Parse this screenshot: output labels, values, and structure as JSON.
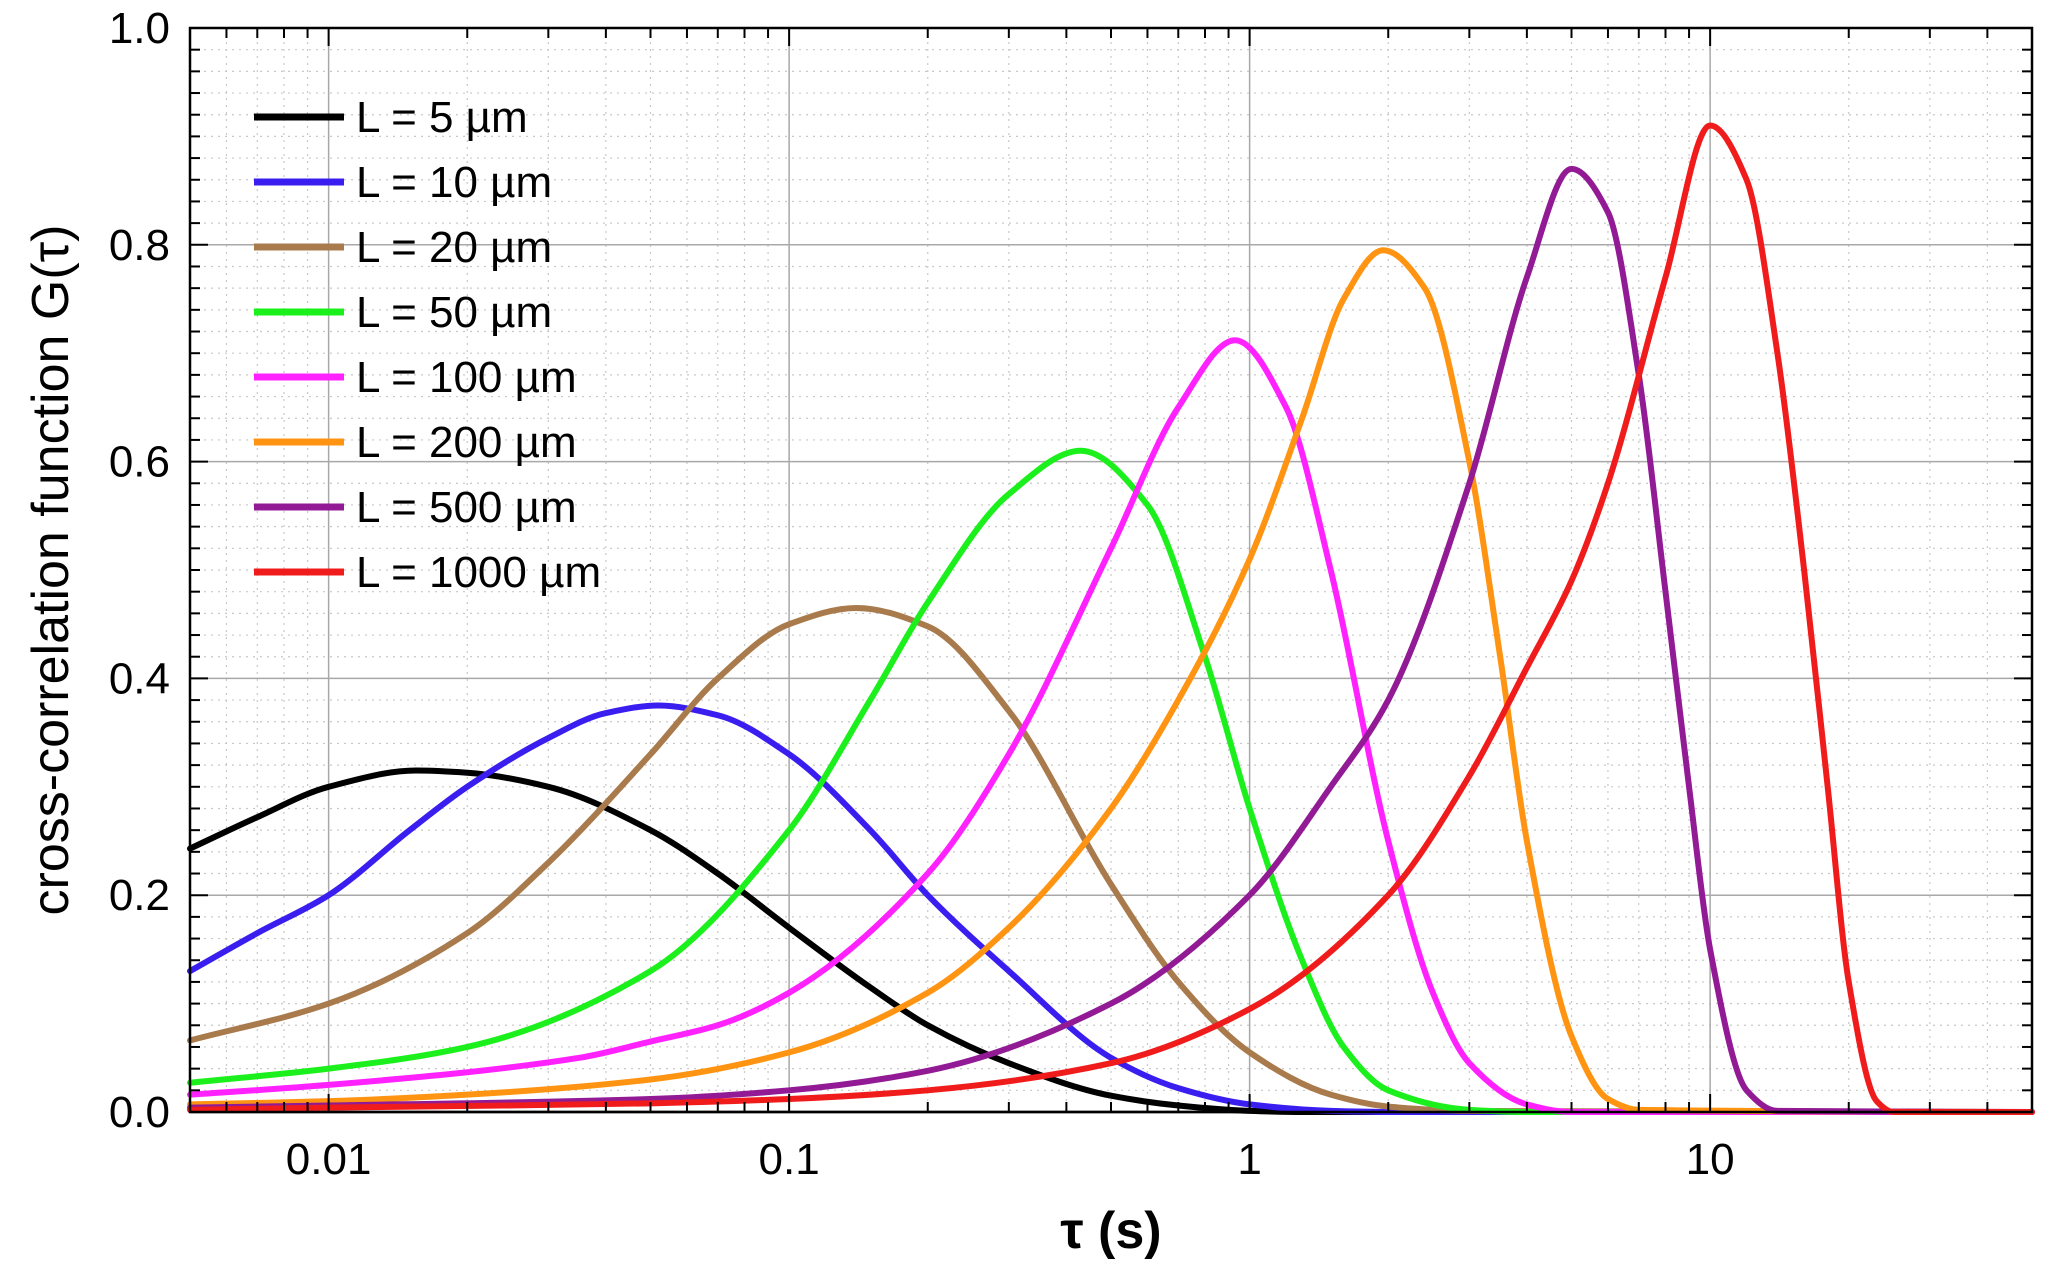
{
  "chart_data": {
    "type": "line",
    "xscale": "log",
    "xlim": [
      0.005,
      50
    ],
    "ylim": [
      0,
      1
    ],
    "xlabel": "τ (s)",
    "ylabel": "cross-correlation function G(τ)",
    "xticks": [
      {
        "value": 0.01,
        "label": "0.01"
      },
      {
        "value": 0.1,
        "label": "0.1"
      },
      {
        "value": 1,
        "label": "1"
      },
      {
        "value": 10,
        "label": "10"
      }
    ],
    "yticks": [
      {
        "value": 0.0,
        "label": "0.0"
      },
      {
        "value": 0.2,
        "label": "0.2"
      },
      {
        "value": 0.4,
        "label": "0.4"
      },
      {
        "value": 0.6,
        "label": "0.6"
      },
      {
        "value": 0.8,
        "label": "0.8"
      },
      {
        "value": 1.0,
        "label": "1.0"
      }
    ],
    "grid": true,
    "legend_position": "top-left",
    "series": [
      {
        "name": "L = 5 µm",
        "color": "#000000",
        "peak_tau": 0.0155,
        "peak_value": 0.315,
        "x": [
          0.005,
          0.007,
          0.01,
          0.0155,
          0.02,
          0.03,
          0.05,
          0.07,
          0.1,
          0.15,
          0.2,
          0.3,
          0.5,
          0.7,
          1.0,
          1.3,
          50
        ],
        "y": [
          0.243,
          0.272,
          0.3,
          0.315,
          0.313,
          0.3,
          0.26,
          0.22,
          0.17,
          0.115,
          0.08,
          0.045,
          0.015,
          0.006,
          0.001,
          0.0,
          0.0
        ]
      },
      {
        "name": "L = 10 µm",
        "color": "#3a1ef0",
        "peak_tau": 0.052,
        "peak_value": 0.375,
        "x": [
          0.005,
          0.007,
          0.01,
          0.015,
          0.02,
          0.03,
          0.04,
          0.052,
          0.07,
          0.1,
          0.15,
          0.2,
          0.3,
          0.5,
          0.7,
          1.0,
          1.5,
          2.0,
          50
        ],
        "y": [
          0.13,
          0.165,
          0.2,
          0.26,
          0.3,
          0.345,
          0.368,
          0.375,
          0.366,
          0.33,
          0.26,
          0.2,
          0.13,
          0.05,
          0.022,
          0.007,
          0.001,
          0.0,
          0.0
        ]
      },
      {
        "name": "L = 20 µm",
        "color": "#a97a4c",
        "peak_tau": 0.14,
        "peak_value": 0.465,
        "x": [
          0.005,
          0.01,
          0.02,
          0.03,
          0.05,
          0.07,
          0.1,
          0.14,
          0.2,
          0.3,
          0.5,
          0.7,
          1.0,
          1.5,
          2.0,
          3.0,
          50
        ],
        "y": [
          0.066,
          0.1,
          0.165,
          0.23,
          0.33,
          0.4,
          0.45,
          0.465,
          0.448,
          0.37,
          0.21,
          0.12,
          0.055,
          0.016,
          0.005,
          0.001,
          0.0
        ]
      },
      {
        "name": "L = 50 µm",
        "color": "#1cf01c",
        "peak_tau": 0.43,
        "peak_value": 0.61,
        "x": [
          0.005,
          0.01,
          0.02,
          0.05,
          0.1,
          0.15,
          0.2,
          0.3,
          0.43,
          0.6,
          0.8,
          1.0,
          1.3,
          1.6,
          2.0,
          3.0,
          4.0,
          50
        ],
        "y": [
          0.027,
          0.04,
          0.06,
          0.13,
          0.26,
          0.38,
          0.47,
          0.57,
          0.61,
          0.56,
          0.42,
          0.28,
          0.14,
          0.06,
          0.02,
          0.002,
          0.0,
          0.0
        ]
      },
      {
        "name": "L = 100 µm",
        "color": "#ff22ff",
        "peak_tau": 0.93,
        "peak_value": 0.712,
        "x": [
          0.005,
          0.01,
          0.035,
          0.05,
          0.07,
          0.1,
          0.2,
          0.3,
          0.5,
          0.7,
          0.93,
          1.2,
          1.5,
          2.0,
          2.5,
          3.0,
          4.0,
          5.0,
          50
        ],
        "y": [
          0.016,
          0.025,
          0.05,
          0.065,
          0.08,
          0.11,
          0.22,
          0.33,
          0.52,
          0.65,
          0.712,
          0.65,
          0.5,
          0.25,
          0.11,
          0.045,
          0.007,
          0.0,
          0.0
        ]
      },
      {
        "name": "L = 200 µm",
        "color": "#ff9412",
        "peak_tau": 1.95,
        "peak_value": 0.795,
        "x": [
          0.005,
          0.01,
          0.02,
          0.05,
          0.1,
          0.2,
          0.3,
          0.5,
          0.7,
          1.0,
          1.3,
          1.6,
          1.95,
          2.4,
          3.0,
          3.5,
          4.0,
          5.0,
          6.0,
          7.0,
          50
        ],
        "y": [
          0.007,
          0.01,
          0.016,
          0.03,
          0.055,
          0.11,
          0.17,
          0.28,
          0.38,
          0.51,
          0.64,
          0.75,
          0.795,
          0.76,
          0.6,
          0.42,
          0.25,
          0.07,
          0.012,
          0.002,
          0.0
        ]
      },
      {
        "name": "L = 500 µm",
        "color": "#921b95",
        "peak_tau": 5.0,
        "peak_value": 0.87,
        "x": [
          0.005,
          0.01,
          0.05,
          0.1,
          0.2,
          0.5,
          1.0,
          1.5,
          2.0,
          3.0,
          4.0,
          5.0,
          6.0,
          7.0,
          8.0,
          9.0,
          10.0,
          12.0,
          14.0,
          50
        ],
        "y": [
          0.004,
          0.006,
          0.012,
          0.02,
          0.038,
          0.1,
          0.2,
          0.3,
          0.38,
          0.58,
          0.77,
          0.87,
          0.83,
          0.68,
          0.48,
          0.3,
          0.15,
          0.02,
          0.001,
          0.0
        ]
      },
      {
        "name": "L = 1000 µm",
        "color": "#f01c1c",
        "peak_tau": 10.0,
        "peak_value": 0.91,
        "x": [
          0.005,
          0.01,
          0.05,
          0.1,
          0.2,
          0.5,
          1.0,
          2.0,
          3.0,
          4.0,
          5.0,
          6.0,
          8.0,
          10.0,
          12.0,
          14.0,
          16.0,
          18.0,
          20.0,
          23.0,
          25.0,
          50
        ],
        "y": [
          0.002,
          0.004,
          0.008,
          0.012,
          0.02,
          0.045,
          0.095,
          0.2,
          0.31,
          0.41,
          0.49,
          0.58,
          0.77,
          0.91,
          0.86,
          0.7,
          0.5,
          0.3,
          0.12,
          0.01,
          0.0,
          0.0
        ]
      }
    ]
  }
}
